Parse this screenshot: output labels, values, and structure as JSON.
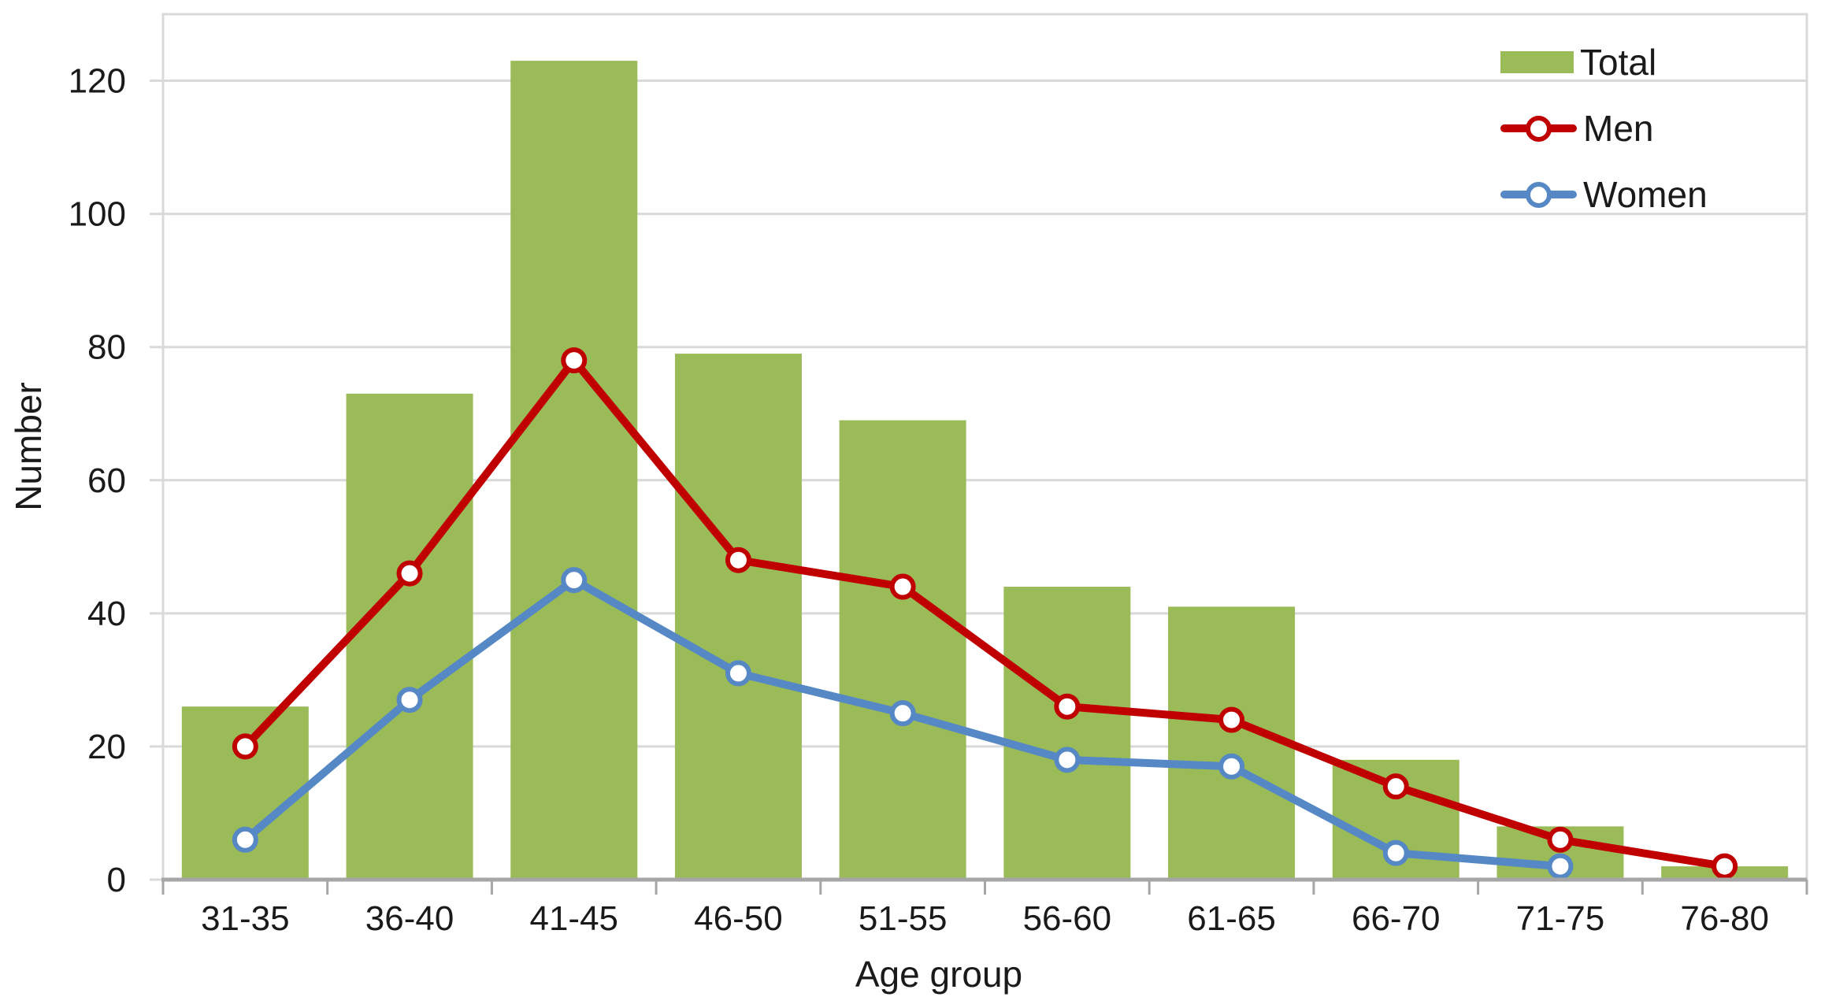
{
  "chart_data": {
    "type": "bar-line-combo",
    "title": "",
    "xlabel": "Age group",
    "ylabel": "Number",
    "categories": [
      "31-35",
      "36-40",
      "41-45",
      "46-50",
      "51-55",
      "56-60",
      "61-65",
      "66-70",
      "71-75",
      "76-80"
    ],
    "series": [
      {
        "name": "Total",
        "type": "bar",
        "color": "#9BBB59",
        "values": [
          26,
          73,
          123,
          79,
          69,
          44,
          41,
          18,
          8,
          2
        ]
      },
      {
        "name": "Men",
        "type": "line",
        "color": "#C00000",
        "values": [
          20,
          46,
          78,
          48,
          44,
          26,
          24,
          14,
          6,
          2
        ]
      },
      {
        "name": "Women",
        "type": "line",
        "color": "#5588C5",
        "values": [
          6,
          27,
          45,
          31,
          25,
          18,
          17,
          4,
          2,
          null
        ]
      }
    ],
    "ylim": [
      0,
      130
    ],
    "yticks": [
      0,
      20,
      40,
      60,
      80,
      100,
      120
    ],
    "grid": true,
    "legend_position": "top-right",
    "colors": {
      "gridline": "#D9D9D9",
      "axis_line": "#A6A6A6",
      "text": "#1A1A1A",
      "background": "#FFFFFF"
    }
  }
}
